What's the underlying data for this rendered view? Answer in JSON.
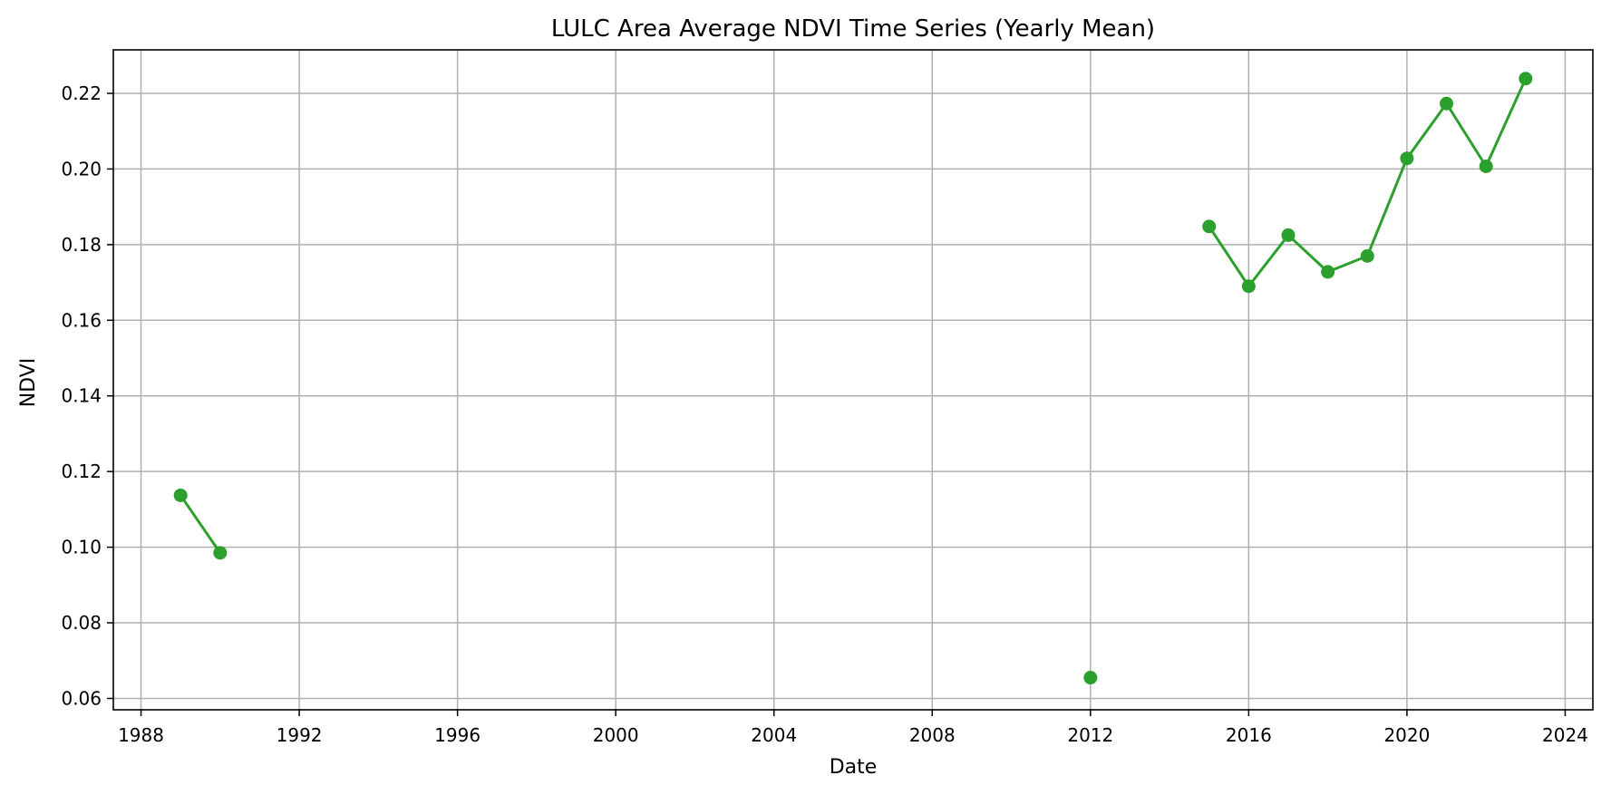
{
  "chart_data": {
    "type": "line",
    "title": "LULC Area Average NDVI Time Series (Yearly Mean)",
    "xlabel": "Date",
    "ylabel": "NDVI",
    "xlim": [
      1987.3,
      2024.7
    ],
    "ylim": [
      0.057,
      0.2315
    ],
    "x_ticks": [
      "1988",
      "1992",
      "1996",
      "2000",
      "2004",
      "2008",
      "2012",
      "2016",
      "2020",
      "2024"
    ],
    "y_ticks": [
      "0.06",
      "0.08",
      "0.10",
      "0.12",
      "0.14",
      "0.16",
      "0.18",
      "0.20",
      "0.22"
    ],
    "grid": true,
    "series": [
      {
        "color": "#2ca02c",
        "marker": "circle",
        "segments": [
          [
            [
              1989,
              0.1137
            ],
            [
              1990,
              0.0985
            ]
          ],
          [
            [
              2012,
              0.0655
            ]
          ],
          [
            [
              2015,
              0.1848
            ],
            [
              2016,
              0.169
            ],
            [
              2017,
              0.1825
            ],
            [
              2018,
              0.1728
            ],
            [
              2019,
              0.177
            ],
            [
              2020,
              0.2028
            ],
            [
              2021,
              0.2173
            ],
            [
              2022,
              0.2007
            ],
            [
              2023,
              0.2239
            ]
          ]
        ]
      }
    ]
  }
}
